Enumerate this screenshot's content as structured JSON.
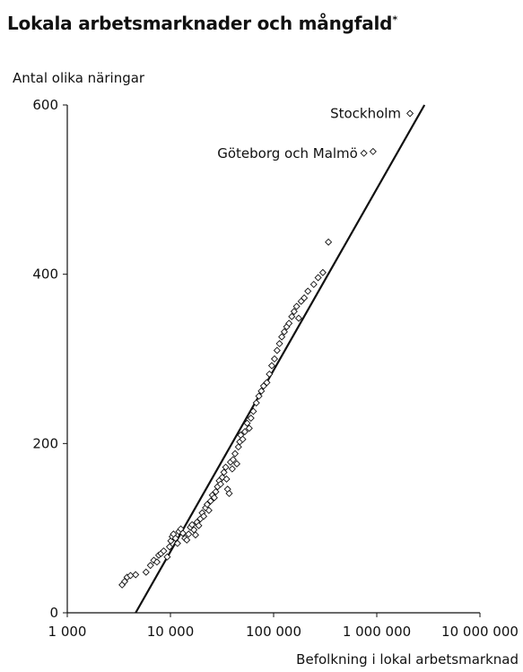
{
  "chart_data": {
    "type": "scatter",
    "title": "Lokala arbetsmarknader och mångfald",
    "title_mark": "*",
    "ylabel": "Antal olika näringar",
    "xlabel": "Befolkning i lokal arbetsmarknad",
    "x_scale": "log",
    "xlim": [
      1000,
      10000000
    ],
    "ylim": [
      0,
      600
    ],
    "grid": false,
    "x_ticks": [
      {
        "value": 1000,
        "label": "1 000"
      },
      {
        "value": 10000,
        "label": "10 000"
      },
      {
        "value": 100000,
        "label": "100 000"
      },
      {
        "value": 1000000,
        "label": "1 000 000"
      },
      {
        "value": 10000000,
        "label": "10 000 000"
      }
    ],
    "y_ticks": [
      {
        "value": 0,
        "label": "0"
      },
      {
        "value": 200,
        "label": "200"
      },
      {
        "value": 400,
        "label": "400"
      },
      {
        "value": 600,
        "label": "600"
      }
    ],
    "marker": "diamond",
    "trend_line": {
      "points": [
        [
          4600,
          0
        ],
        [
          2900000,
          600
        ]
      ]
    },
    "annotations": [
      {
        "text": "Stockholm",
        "x": 2100000,
        "y": 590,
        "anchor": "end",
        "dx": -10
      },
      {
        "text": "Göteborg och Malmö",
        "x": 800000,
        "y": 543,
        "anchor": "end",
        "dx": -10
      }
    ],
    "points": [
      [
        3400,
        33
      ],
      [
        3600,
        37
      ],
      [
        3800,
        42
      ],
      [
        4100,
        44
      ],
      [
        4600,
        45
      ],
      [
        5800,
        48
      ],
      [
        6400,
        56
      ],
      [
        6900,
        62
      ],
      [
        7400,
        60
      ],
      [
        7700,
        68
      ],
      [
        8100,
        70
      ],
      [
        8600,
        73
      ],
      [
        9300,
        66
      ],
      [
        9800,
        78
      ],
      [
        10100,
        85
      ],
      [
        10400,
        90
      ],
      [
        10700,
        93
      ],
      [
        11200,
        88
      ],
      [
        11700,
        82
      ],
      [
        12100,
        96
      ],
      [
        12600,
        99
      ],
      [
        13200,
        94
      ],
      [
        13800,
        88
      ],
      [
        14400,
        86
      ],
      [
        15000,
        93
      ],
      [
        15600,
        101
      ],
      [
        16200,
        104
      ],
      [
        16900,
        98
      ],
      [
        17500,
        92
      ],
      [
        18100,
        107
      ],
      [
        18800,
        103
      ],
      [
        19500,
        111
      ],
      [
        20300,
        118
      ],
      [
        21000,
        114
      ],
      [
        21900,
        124
      ],
      [
        22700,
        128
      ],
      [
        23600,
        121
      ],
      [
        24500,
        132
      ],
      [
        25500,
        139
      ],
      [
        26600,
        136
      ],
      [
        27500,
        143
      ],
      [
        28600,
        149
      ],
      [
        29700,
        156
      ],
      [
        30600,
        152
      ],
      [
        31800,
        160
      ],
      [
        33000,
        166
      ],
      [
        34300,
        172
      ],
      [
        35000,
        158
      ],
      [
        35800,
        146
      ],
      [
        37100,
        141
      ],
      [
        38200,
        178
      ],
      [
        39700,
        170
      ],
      [
        40500,
        181
      ],
      [
        42300,
        188
      ],
      [
        44000,
        176
      ],
      [
        45600,
        196
      ],
      [
        47000,
        202
      ],
      [
        48000,
        210
      ],
      [
        50200,
        205
      ],
      [
        52600,
        214
      ],
      [
        55400,
        224
      ],
      [
        58000,
        218
      ],
      [
        60300,
        230
      ],
      [
        63600,
        238
      ],
      [
        68000,
        248
      ],
      [
        72000,
        256
      ],
      [
        76000,
        262
      ],
      [
        80000,
        268
      ],
      [
        86000,
        272
      ],
      [
        91000,
        282
      ],
      [
        96000,
        292
      ],
      [
        102000,
        300
      ],
      [
        108000,
        310
      ],
      [
        114000,
        318
      ],
      [
        120000,
        326
      ],
      [
        127000,
        332
      ],
      [
        134000,
        338
      ],
      [
        141000,
        342
      ],
      [
        150000,
        350
      ],
      [
        158000,
        356
      ],
      [
        167000,
        362
      ],
      [
        175000,
        348
      ],
      [
        185000,
        368
      ],
      [
        198000,
        372
      ],
      [
        215000,
        380
      ],
      [
        245000,
        388
      ],
      [
        270000,
        396
      ],
      [
        300000,
        402
      ],
      [
        340000,
        438
      ],
      [
        750000,
        543
      ],
      [
        920000,
        545
      ],
      [
        2100000,
        590
      ]
    ]
  }
}
